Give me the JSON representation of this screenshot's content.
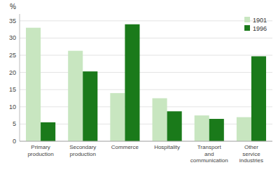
{
  "chart_data": {
    "type": "bar",
    "categories": [
      "Primary\nproduction",
      "Secondary\nproduction",
      "Commerce",
      "Hospitality",
      "Transport\nand\ncommunication",
      "Other\nservice\nindustries"
    ],
    "series": [
      {
        "name": "1901",
        "color": "#c8e6c0",
        "values": [
          33.0,
          26.3,
          14.0,
          12.5,
          7.5,
          7.0
        ]
      },
      {
        "name": "1996",
        "color": "#1a7a1a",
        "values": [
          5.5,
          20.3,
          34.0,
          8.7,
          6.5,
          24.7
        ]
      }
    ],
    "ylabel": "%",
    "ylim": [
      0,
      37
    ],
    "yticks": [
      0,
      5,
      10,
      15,
      20,
      25,
      30,
      35
    ],
    "grid": true,
    "legend": "upper right"
  }
}
